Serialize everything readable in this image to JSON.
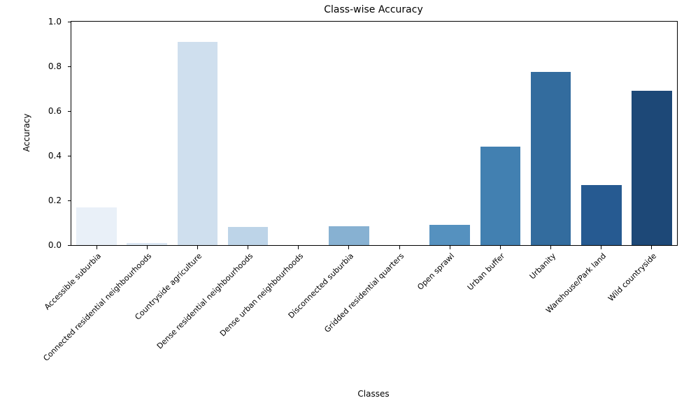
{
  "chart_data": {
    "type": "bar",
    "title": "Class-wise Accuracy",
    "xlabel": "Classes",
    "ylabel": "Accuracy",
    "ylim": [
      0.0,
      1.0
    ],
    "ytick_labels": [
      "0.0",
      "0.2",
      "0.4",
      "0.6",
      "0.8",
      "1.0"
    ],
    "ytick_values": [
      0.0,
      0.2,
      0.4,
      0.6,
      0.8,
      1.0
    ],
    "grid": false,
    "legend": null,
    "categories": [
      "Accessible suburbia",
      "Connected residential neighbourhoods",
      "Countryside agriculture",
      "Dense residential neighbourhoods",
      "Dense urban neighbourhoods",
      "Disconnected suburbia",
      "Gridded residential quarters",
      "Open sprawl",
      "Urban buffer",
      "Urbanity",
      "Warehouse/Park land",
      "Wild countryside"
    ],
    "values": [
      0.17,
      0.01,
      0.91,
      0.08,
      0.0,
      0.085,
      0.0,
      0.09,
      0.44,
      0.775,
      0.27,
      0.69
    ],
    "bar_colors": [
      "#e9f0f8",
      "#dbe7f3",
      "#cfdfee",
      "#bdd4e8",
      "#a5c6dd",
      "#87b1d2",
      "#6ca2c9",
      "#5591bf",
      "#4280b1",
      "#336c9e",
      "#265a91",
      "#1d4877"
    ],
    "spine_color": "#000000",
    "background_color": "#ffffff"
  }
}
